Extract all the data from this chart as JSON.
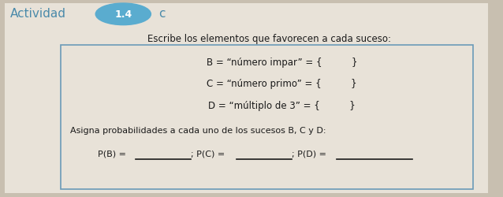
{
  "bg_color": "#c8bfb0",
  "paper_color": "#e8e2d8",
  "title_color": "#4a8aaa",
  "circle_color": "#5aaccf",
  "circle_text_color": "#ffffff",
  "box_edge_color": "#6a9ab8",
  "text_color": "#1a1a1a",
  "underline_color": "#1a1a1a",
  "title_text": "Actividad",
  "title_num": "1.4",
  "title_suffix": "c",
  "line1": "Escribe los elementos que favorecen a cada suceso:",
  "line2": "B = “número impar” = {          }",
  "line3": "C = “número primo” = {          }",
  "line4": "D = “múltiplo de 3” = {          }",
  "line5": "Asigna probabilidades a cada uno de los sucesos B, C y D:",
  "line6a": "P(B) =",
  "line6b": "; P(C) =",
  "line6c": "; P(D) =",
  "font_size_title": 11,
  "font_size_circle": 8,
  "font_size_body": 8.5,
  "font_size_prob": 8.0
}
